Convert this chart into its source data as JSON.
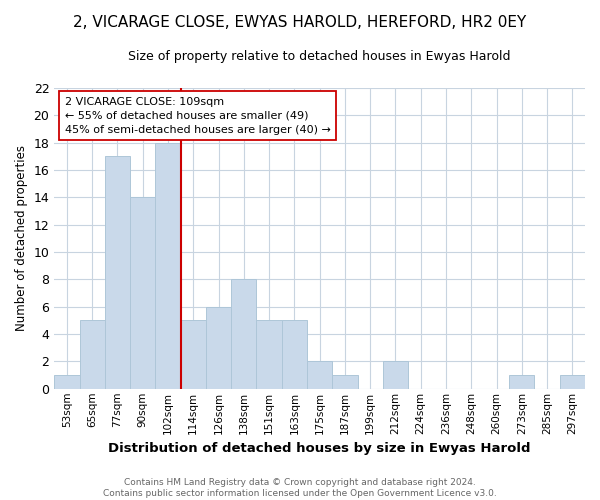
{
  "title": "2, VICARAGE CLOSE, EWYAS HAROLD, HEREFORD, HR2 0EY",
  "subtitle": "Size of property relative to detached houses in Ewyas Harold",
  "xlabel": "Distribution of detached houses by size in Ewyas Harold",
  "ylabel": "Number of detached properties",
  "bins": [
    "53sqm",
    "65sqm",
    "77sqm",
    "90sqm",
    "102sqm",
    "114sqm",
    "126sqm",
    "138sqm",
    "151sqm",
    "163sqm",
    "175sqm",
    "187sqm",
    "199sqm",
    "212sqm",
    "224sqm",
    "236sqm",
    "248sqm",
    "260sqm",
    "273sqm",
    "285sqm",
    "297sqm"
  ],
  "counts": [
    1,
    5,
    17,
    14,
    18,
    5,
    6,
    8,
    5,
    5,
    2,
    1,
    0,
    2,
    0,
    0,
    0,
    0,
    1,
    0,
    1
  ],
  "bar_color": "#c9d9ea",
  "bar_edge_color": "#aec6d8",
  "vline_x_index": 5,
  "vline_color": "#cc0000",
  "annotation_text": "2 VICARAGE CLOSE: 109sqm\n← 55% of detached houses are smaller (49)\n45% of semi-detached houses are larger (40) →",
  "annotation_box_color": "#ffffff",
  "annotation_box_edge": "#cc0000",
  "ylim": [
    0,
    22
  ],
  "yticks": [
    0,
    2,
    4,
    6,
    8,
    10,
    12,
    14,
    16,
    18,
    20,
    22
  ],
  "footer": "Contains HM Land Registry data © Crown copyright and database right 2024.\nContains public sector information licensed under the Open Government Licence v3.0.",
  "bg_color": "#ffffff",
  "grid_color": "#c8d4e0",
  "title_fontsize": 11,
  "subtitle_fontsize": 9
}
